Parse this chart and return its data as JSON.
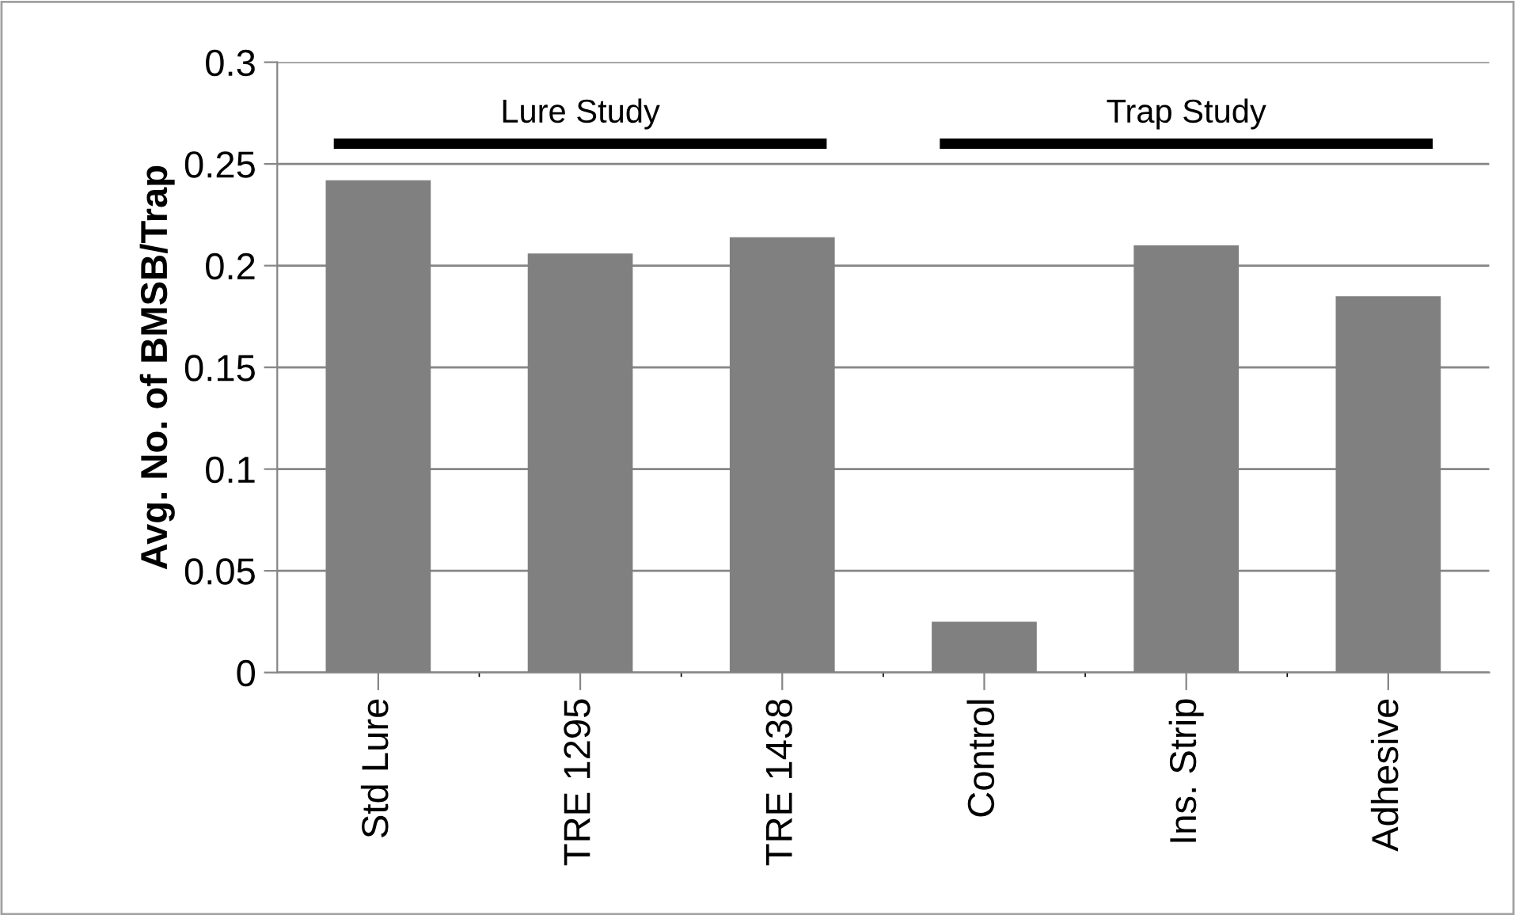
{
  "chart_data": {
    "type": "bar",
    "ylabel": "Avg. No. of BMSB/Trap",
    "categories": [
      "Std Lure",
      "TRE 1295",
      "TRE 1438",
      "Control",
      "Ins. Strip",
      "Adhesive"
    ],
    "values": [
      0.242,
      0.206,
      0.214,
      0.025,
      0.21,
      0.185
    ],
    "color": "#808080",
    "ylim": [
      0,
      0.3
    ],
    "yticks": [
      0,
      0.05,
      0.1,
      0.15,
      0.2,
      0.25,
      0.3
    ],
    "grid": "y",
    "annotations": [
      "Lure Study",
      "Trap Study"
    ]
  }
}
